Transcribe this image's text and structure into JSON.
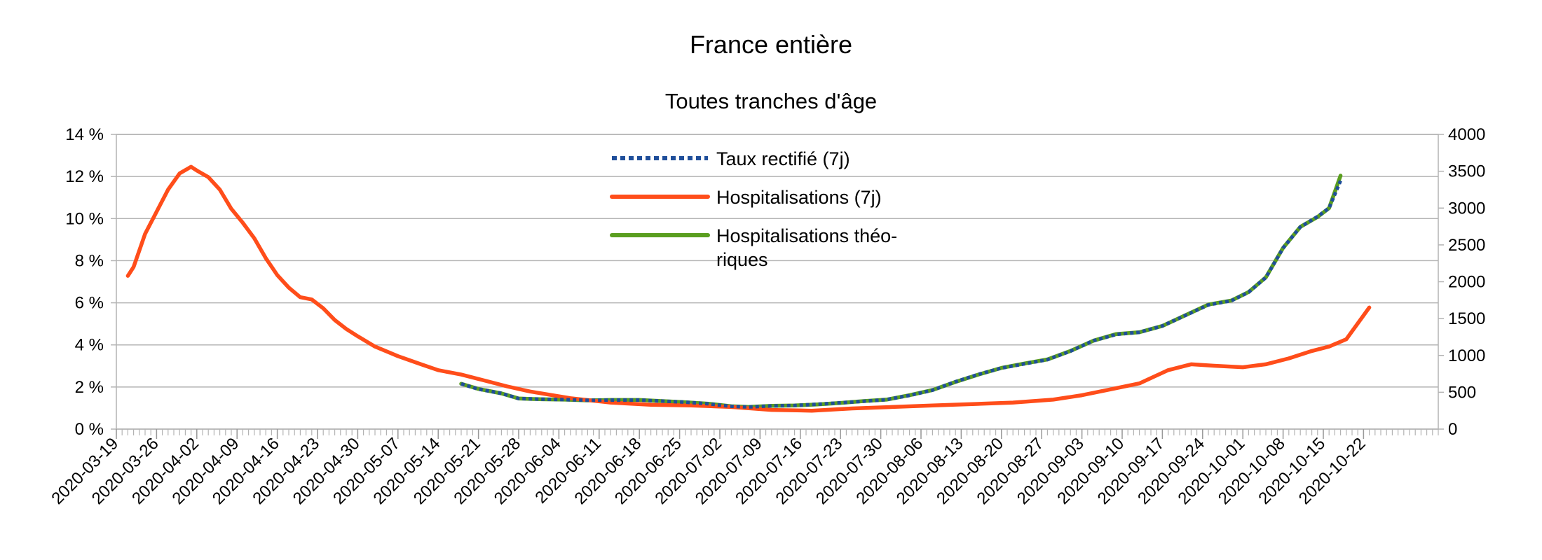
{
  "chart_data": {
    "type": "line",
    "title": "France entière",
    "subtitle": "Toutes tranches d'âge",
    "x_ticks": [
      "2020-03-19",
      "2020-03-26",
      "2020-04-02",
      "2020-04-09",
      "2020-04-16",
      "2020-04-23",
      "2020-04-30",
      "2020-05-07",
      "2020-05-14",
      "2020-05-21",
      "2020-05-28",
      "2020-06-04",
      "2020-06-11",
      "2020-06-18",
      "2020-06-25",
      "2020-07-02",
      "2020-07-09",
      "2020-07-16",
      "2020-07-23",
      "2020-07-30",
      "2020-08-06",
      "2020-08-13",
      "2020-08-20",
      "2020-08-27",
      "2020-09-03",
      "2020-09-10",
      "2020-09-17",
      "2020-09-24",
      "2020-10-01",
      "2020-10-08",
      "2020-10-15",
      "2020-10-22"
    ],
    "x_range": [
      "2020-03-19",
      "2020-11-04"
    ],
    "y_left": {
      "range": [
        0,
        14
      ],
      "ticks": [
        "0 %",
        "2 %",
        "4 %",
        "6 %",
        "8 %",
        "10 %",
        "12 %",
        "14 %"
      ],
      "tick_values": [
        0,
        2,
        4,
        6,
        8,
        10,
        12,
        14
      ]
    },
    "y_right": {
      "range": [
        0,
        4000
      ],
      "ticks": [
        "0",
        "500",
        "1000",
        "1500",
        "2000",
        "2500",
        "3000",
        "3500",
        "4000"
      ],
      "tick_values": [
        0,
        500,
        1000,
        1500,
        2000,
        2500,
        3000,
        3500,
        4000
      ]
    },
    "grid": true,
    "legend_position": "top-center",
    "series": [
      {
        "name": "Taux rectifié (7j)",
        "axis": "left",
        "color": "#1f4e9a",
        "style": "dotted",
        "x": [
          "2020-05-18",
          "2020-05-21",
          "2020-05-25",
          "2020-05-28",
          "2020-06-01",
          "2020-06-05",
          "2020-06-09",
          "2020-06-13",
          "2020-06-18",
          "2020-06-22",
          "2020-06-26",
          "2020-06-30",
          "2020-07-04",
          "2020-07-07",
          "2020-07-11",
          "2020-07-15",
          "2020-07-19",
          "2020-07-23",
          "2020-07-27",
          "2020-07-31",
          "2020-08-04",
          "2020-08-08",
          "2020-08-12",
          "2020-08-16",
          "2020-08-20",
          "2020-08-24",
          "2020-08-28",
          "2020-09-01",
          "2020-09-05",
          "2020-09-09",
          "2020-09-13",
          "2020-09-17",
          "2020-09-21",
          "2020-09-25",
          "2020-09-29",
          "2020-10-02",
          "2020-10-05",
          "2020-10-08",
          "2020-10-11",
          "2020-10-14",
          "2020-10-16",
          "2020-10-18"
        ],
        "values": [
          2.15,
          1.9,
          1.7,
          1.45,
          1.42,
          1.4,
          1.37,
          1.38,
          1.38,
          1.33,
          1.28,
          1.2,
          1.08,
          1.05,
          1.1,
          1.12,
          1.18,
          1.25,
          1.32,
          1.4,
          1.6,
          1.85,
          2.25,
          2.6,
          2.9,
          3.1,
          3.3,
          3.7,
          4.2,
          4.5,
          4.6,
          4.9,
          5.4,
          5.9,
          6.1,
          6.5,
          7.2,
          8.6,
          9.6,
          10.1,
          10.5,
          11.8
        ]
      },
      {
        "name": "Hospitalisations (7j)",
        "axis": "right",
        "color": "#ff4d1a",
        "style": "solid",
        "x": [
          "2020-03-21",
          "2020-03-22",
          "2020-03-24",
          "2020-03-26",
          "2020-03-28",
          "2020-03-30",
          "2020-04-01",
          "2020-04-02",
          "2020-04-04",
          "2020-04-06",
          "2020-04-08",
          "2020-04-10",
          "2020-04-12",
          "2020-04-14",
          "2020-04-16",
          "2020-04-18",
          "2020-04-20",
          "2020-04-22",
          "2020-04-24",
          "2020-04-26",
          "2020-04-28",
          "2020-04-30",
          "2020-05-03",
          "2020-05-07",
          "2020-05-11",
          "2020-05-14",
          "2020-05-18",
          "2020-05-22",
          "2020-05-26",
          "2020-05-30",
          "2020-06-06",
          "2020-06-13",
          "2020-06-20",
          "2020-06-27",
          "2020-07-04",
          "2020-07-11",
          "2020-07-18",
          "2020-07-25",
          "2020-08-01",
          "2020-08-08",
          "2020-08-15",
          "2020-08-22",
          "2020-08-29",
          "2020-09-03",
          "2020-09-08",
          "2020-09-13",
          "2020-09-18",
          "2020-09-22",
          "2020-09-26",
          "2020-10-01",
          "2020-10-05",
          "2020-10-09",
          "2020-10-13",
          "2020-10-16",
          "2020-10-19",
          "2020-10-23"
        ],
        "values": [
          2080,
          2200,
          2650,
          2950,
          3250,
          3470,
          3560,
          3510,
          3420,
          3250,
          2990,
          2800,
          2590,
          2320,
          2090,
          1920,
          1790,
          1760,
          1640,
          1480,
          1360,
          1260,
          1120,
          990,
          880,
          800,
          740,
          660,
          580,
          510,
          420,
          360,
          330,
          320,
          300,
          260,
          250,
          280,
          300,
          320,
          340,
          360,
          400,
          460,
          540,
          620,
          800,
          880,
          860,
          840,
          880,
          960,
          1060,
          1120,
          1220,
          1650
        ]
      },
      {
        "name": "Hospitalisations théo-riques",
        "axis": "right",
        "color": "#5a9e1f",
        "style": "solid",
        "x": [
          "2020-05-18",
          "2020-05-21",
          "2020-05-25",
          "2020-05-28",
          "2020-06-01",
          "2020-06-05",
          "2020-06-09",
          "2020-06-13",
          "2020-06-18",
          "2020-06-22",
          "2020-06-26",
          "2020-06-30",
          "2020-07-04",
          "2020-07-07",
          "2020-07-11",
          "2020-07-15",
          "2020-07-19",
          "2020-07-23",
          "2020-07-27",
          "2020-07-31",
          "2020-08-04",
          "2020-08-08",
          "2020-08-12",
          "2020-08-16",
          "2020-08-20",
          "2020-08-24",
          "2020-08-28",
          "2020-09-01",
          "2020-09-05",
          "2020-09-09",
          "2020-09-13",
          "2020-09-17",
          "2020-09-21",
          "2020-09-25",
          "2020-09-29",
          "2020-10-02",
          "2020-10-05",
          "2020-10-08",
          "2020-10-11",
          "2020-10-14",
          "2020-10-16",
          "2020-10-18"
        ],
        "values": [
          615,
          545,
          485,
          415,
          405,
          400,
          390,
          395,
          395,
          380,
          365,
          345,
          310,
          300,
          315,
          320,
          335,
          355,
          380,
          400,
          460,
          530,
          640,
          740,
          830,
          890,
          945,
          1060,
          1200,
          1290,
          1315,
          1400,
          1545,
          1690,
          1745,
          1860,
          2060,
          2460,
          2745,
          2880,
          3000,
          3440
        ]
      }
    ]
  }
}
